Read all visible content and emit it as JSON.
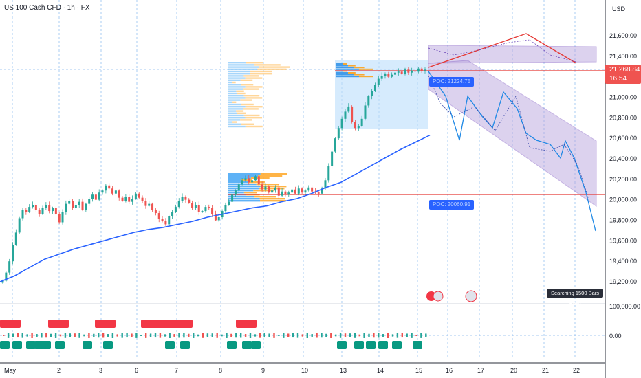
{
  "title": "US 100 Cash CFD · 1h · FX",
  "currency": "USD",
  "last_price": "21,268.84",
  "countdown": "16:54",
  "poc_upper_label": "POC: 21224.75",
  "poc_lower_label": "POC: 20060.91",
  "search_label": "Searching 1500 Bars Back",
  "colors": {
    "up": "#26a69a",
    "down": "#ef5350",
    "ma": "#2962ff",
    "poc_line": "#e53935",
    "channel_fill": "#b39ddb",
    "box_fill": "#bbdefb",
    "badge_down": "#f23645",
    "badge_up": "#089981"
  },
  "chart_data": {
    "type": "candlestick",
    "y_axis_ticks": [
      "21,600.00",
      "21,400.00",
      "21,200.00",
      "21,000.00",
      "20,800.00",
      "20,600.00",
      "20,400.00",
      "20,200.00",
      "20,000.00",
      "19,800.00",
      "19,600.00",
      "19,400.00",
      "19,200.00"
    ],
    "indicator_ticks": [
      "100,000.00",
      "0.00"
    ],
    "x_axis_labels": [
      "May",
      "2",
      "3",
      "6",
      "7",
      "8",
      "9",
      "10",
      "13",
      "14",
      "15",
      "16",
      "17",
      "20",
      "21",
      "22"
    ],
    "ylim": [
      19100,
      21750
    ],
    "grid": true,
    "closes": [
      19210,
      19290,
      19400,
      19560,
      19680,
      19820,
      19900,
      19880,
      19930,
      19950,
      19900,
      19860,
      19920,
      19950,
      19890,
      19920,
      19860,
      19780,
      19880,
      19960,
      19990,
      19920,
      19950,
      19980,
      19900,
      19960,
      20010,
      20050,
      20000,
      20070,
      20090,
      20140,
      20110,
      20060,
      20090,
      20020,
      19990,
      20030,
      19980,
      20010,
      20060,
      20020,
      19990,
      19940,
      19960,
      19900,
      19870,
      19810,
      19790,
      19760,
      19840,
      19880,
      19930,
      19990,
      20030,
      20000,
      19970,
      19920,
      19950,
      19880,
      19890,
      19930,
      19920,
      19860,
      19800,
      19830,
      19890,
      19950,
      19980,
      20050,
      20090,
      20150,
      20190,
      20210,
      20170,
      20190,
      20230,
      20150,
      20100,
      20130,
      20070,
      20090,
      20120,
      20040,
      20080,
      20050,
      20070,
      20100,
      20060,
      20110,
      20070,
      20090,
      20120,
      20080,
      20070,
      20060,
      20110,
      20190,
      20330,
      20470,
      20600,
      20700,
      20790,
      20860,
      20910,
      20760,
      20700,
      20720,
      20790,
      20920,
      21010,
      21060,
      21120,
      21180,
      21210,
      21230,
      21200,
      21220,
      21240,
      21250,
      21230,
      21270,
      21240,
      21260,
      21250,
      21280,
      21260,
      21268.84
    ],
    "moving_average": [
      19200,
      19260,
      19340,
      19420,
      19470,
      19520,
      19560,
      19600,
      19640,
      19680,
      19710,
      19730,
      19760,
      19790,
      19830,
      19860,
      19890,
      19920,
      19940,
      19980,
      20010,
      20060,
      20120,
      20170,
      20250,
      20330,
      20410,
      20490,
      20560,
      20630
    ],
    "upper_poc": 21224.75,
    "lower_poc": 20060.91
  }
}
